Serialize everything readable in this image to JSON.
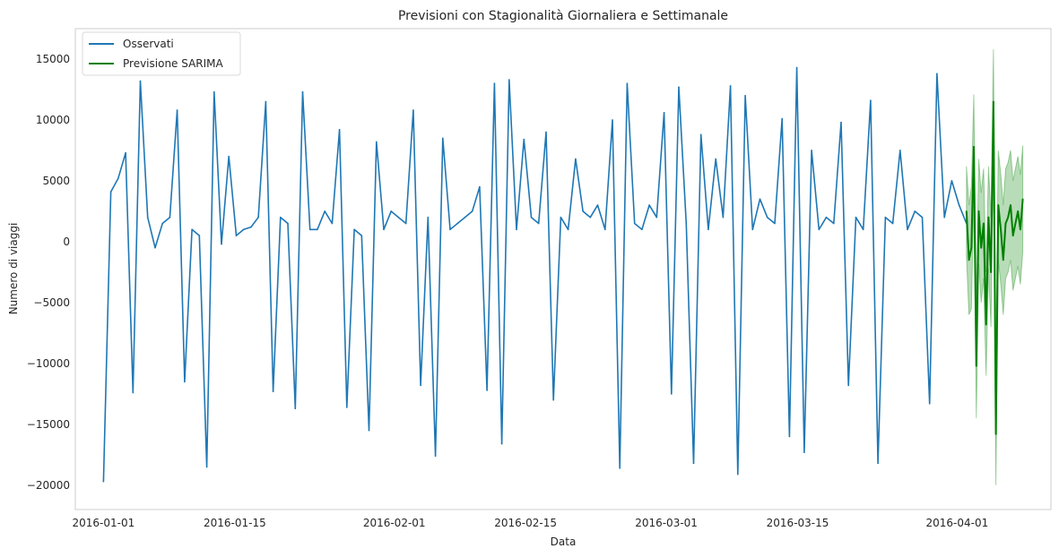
{
  "chart_data": {
    "type": "line",
    "title": "Previsioni con Stagionalità Giornaliera e Settimanale",
    "xlabel": "Data",
    "ylabel": "Numero di viaggi",
    "ylim": [
      -22000,
      17500
    ],
    "xlim": [
      "2015-12-29",
      "2016-04-11"
    ],
    "grid": false,
    "legend_position": "top-left",
    "x_tick_labels": [
      "2016-01-01",
      "2016-01-15",
      "2016-02-01",
      "2016-02-15",
      "2016-03-01",
      "2016-03-15",
      "2016-04-01"
    ],
    "y_ticks": [
      15000,
      10000,
      5000,
      0,
      -5000,
      -10000,
      -15000,
      -20000
    ],
    "y_tick_labels": [
      "15000",
      "10000",
      "5000",
      "0",
      "−5000",
      "−10000",
      "−15000",
      "−20000"
    ],
    "series": [
      {
        "name": "Osservati",
        "color": "#1f77b4",
        "x_start": "2016-01-01",
        "x_end": "2016-04-02",
        "points_per_day": 4,
        "values": [
          -19700,
          4100,
          5200,
          7300,
          -12400,
          13200,
          2000,
          -500,
          1500,
          2000,
          10800,
          -11500,
          1000,
          500,
          -18500,
          12300,
          -200,
          7000,
          500,
          1000,
          1200,
          2000,
          11500,
          -12300,
          2000,
          1500,
          -13700,
          12300,
          1000,
          1000,
          2500,
          1500,
          9200,
          -13600,
          1000,
          500,
          -15500,
          8200,
          1000,
          2500,
          2000,
          1500,
          10800,
          -11800,
          2000,
          -17600,
          8500,
          1000,
          1500,
          2000,
          2500,
          4500,
          -12200,
          13000,
          -16600,
          13300,
          1000,
          8400,
          2000,
          1500,
          9000,
          -13000,
          2000,
          1000,
          6800,
          2500,
          2000,
          3000,
          1000,
          10000,
          -18600,
          13000,
          1500,
          1000,
          3000,
          2000,
          10600,
          -12500,
          12700,
          1500,
          -18200,
          8800,
          1000,
          6800,
          2000,
          12800,
          -19100,
          12000,
          1000,
          3500,
          2000,
          1500,
          10100,
          -16000,
          14300,
          -17300,
          7500,
          1000,
          2000,
          1500,
          9800,
          -11800,
          2000,
          1000,
          11600,
          -18200,
          2000,
          1500,
          7500,
          1000,
          2500,
          2000,
          -13300,
          13800,
          2000,
          5000,
          3000,
          1500
        ]
      },
      {
        "name": "Previsione SARIMA",
        "color": "#008000",
        "x_start": "2016-04-02",
        "x_end": "2016-04-08",
        "points_per_day": 4,
        "values": [
          2500,
          -1500,
          -500,
          7800,
          -10200,
          2500,
          -500,
          1500,
          -6800,
          2000,
          -2500,
          11500,
          -15800,
          3000,
          1000,
          -1500,
          1500,
          2000,
          3000,
          500,
          1500,
          2500,
          1000,
          3500
        ],
        "ci_upper": [
          6200,
          3000,
          4500,
          12100,
          -5500,
          6800,
          4000,
          6000,
          -2500,
          6200,
          2000,
          15800,
          -9200,
          7500,
          5500,
          3000,
          6000,
          6500,
          7500,
          5000,
          6000,
          7000,
          5500,
          7900
        ],
        "ci_lower": [
          -1200,
          -6000,
          -5500,
          3500,
          -14500,
          -1800,
          -5000,
          -3000,
          -11000,
          -2200,
          -7000,
          7200,
          -20000,
          -1500,
          -3500,
          -6000,
          -3000,
          -2500,
          -1500,
          -4000,
          -3000,
          -2000,
          -3500,
          -800
        ]
      }
    ]
  }
}
